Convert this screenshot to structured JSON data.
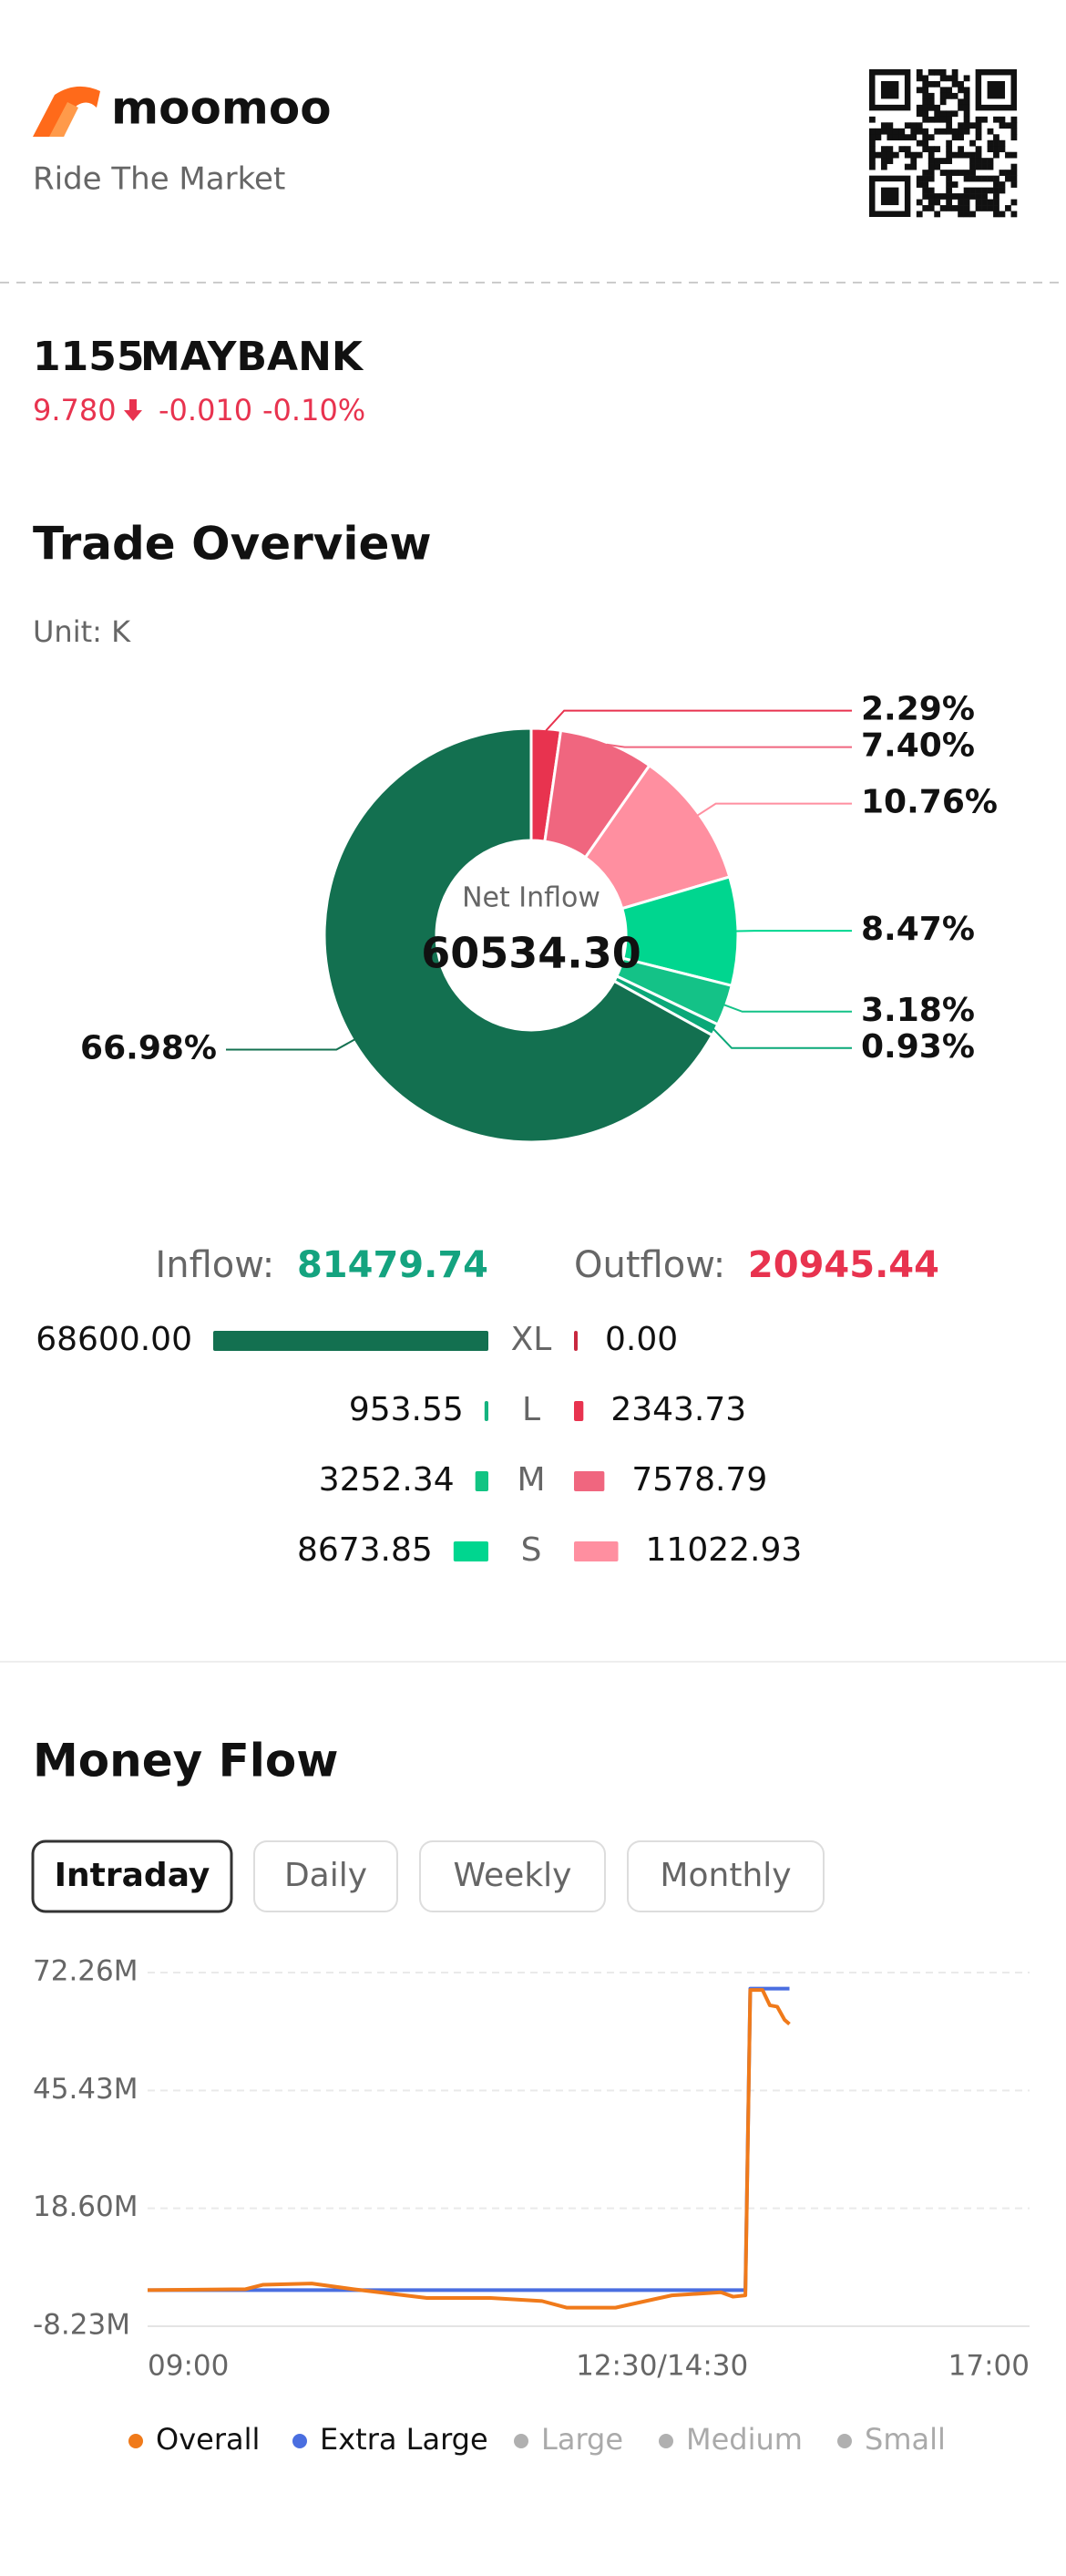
{
  "header": {
    "brand": "moomoo",
    "tagline": "Ride The Market"
  },
  "stock": {
    "code": "1155",
    "name": "MAYBANK",
    "price": "9.780",
    "change": "-0.010",
    "change_pct": "-0.10%"
  },
  "trade_overview": {
    "title": "Trade Overview",
    "unit": "Unit: K",
    "inflow_label": "Inflow:",
    "inflow_total": "81479.74",
    "outflow_label": "Outflow:",
    "outflow_total": "20945.44",
    "rows": [
      {
        "size": "XL",
        "inflow": {
          "value": 68600,
          "label": "68600.00"
        },
        "outflow": {
          "value": 0,
          "label": "0.00"
        },
        "inflow_color": "#137050",
        "outflow_color": "#c8283f"
      },
      {
        "size": "L",
        "inflow": {
          "value": 953.55,
          "label": "953.55"
        },
        "outflow": {
          "value": 2343.73,
          "label": "2343.73"
        },
        "inflow_color": "#14b37f",
        "outflow_color": "#e8334f"
      },
      {
        "size": "M",
        "inflow": {
          "value": 3252.34,
          "label": "3252.34"
        },
        "outflow": {
          "value": 7578.79,
          "label": "7578.79"
        },
        "inflow_color": "#12c483",
        "outflow_color": "#f0667f"
      },
      {
        "size": "S",
        "inflow": {
          "value": 8673.85,
          "label": "8673.85"
        },
        "outflow": {
          "value": 11022.93,
          "label": "11022.93"
        },
        "inflow_color": "#00d68f",
        "outflow_color": "#ff8fa0"
      }
    ]
  },
  "money_flow": {
    "title": "Money Flow",
    "tabs": [
      "Intraday",
      "Daily",
      "Weekly",
      "Monthly"
    ],
    "active_tab": 0
  },
  "chart_data": [
    {
      "type": "pie",
      "donut": true,
      "center_label": "Net Inflow",
      "center_value": "60534.30",
      "values": [
        2.29,
        7.4,
        10.76,
        8.47,
        3.18,
        0.93,
        66.98
      ],
      "value_labels": [
        "2.29%",
        "7.40%",
        "10.76%",
        "8.47%",
        "3.18%",
        "0.93%",
        "66.98%"
      ],
      "colors": [
        "#e8334f",
        "#f0667f",
        "#ff8fa0",
        "#00d68f",
        "#14c287",
        "#0aa878",
        "#137050"
      ]
    },
    {
      "type": "line",
      "xlim": [
        0,
        360
      ],
      "xticks": [
        {
          "value": 0,
          "label": "09:00"
        },
        {
          "value": 210,
          "label": "12:30/14:30"
        },
        {
          "value": 360,
          "label": "17:00"
        }
      ],
      "ylim": [
        -8.23,
        72.26
      ],
      "yticks": [
        {
          "value": -8.23,
          "label": "-8.23M"
        },
        {
          "value": 18.6,
          "label": "18.60M"
        },
        {
          "value": 45.43,
          "label": "45.43M"
        },
        {
          "value": 72.26,
          "label": "72.26M"
        }
      ],
      "grid": true,
      "x": [
        0,
        40,
        47,
        67,
        84,
        114,
        140,
        161,
        171,
        191,
        214,
        234,
        239,
        244,
        246,
        251,
        254,
        257,
        260,
        262
      ],
      "series": [
        {
          "name": "Overall",
          "color": "#f07a1a",
          "values": [
            0,
            0.2,
            1.2,
            1.5,
            0.2,
            -1.8,
            -1.8,
            -2.5,
            -4.0,
            -4.0,
            -1.2,
            -0.5,
            -1.5,
            -1.2,
            68.3,
            68.3,
            64.8,
            64.5,
            61.5,
            60.53
          ]
        },
        {
          "name": "Extra Large",
          "color": "#4a6ee0",
          "values": [
            0,
            0,
            0,
            0,
            0,
            0,
            0,
            0,
            0,
            0,
            0,
            0,
            0,
            0,
            68.6,
            68.6,
            68.6,
            68.6,
            68.6,
            68.6
          ]
        },
        {
          "name": "Large",
          "color": "#b0b0b0",
          "visible": false
        },
        {
          "name": "Medium",
          "color": "#b0b0b0",
          "visible": false
        },
        {
          "name": "Small",
          "color": "#b0b0b0",
          "visible": false
        }
      ]
    }
  ]
}
